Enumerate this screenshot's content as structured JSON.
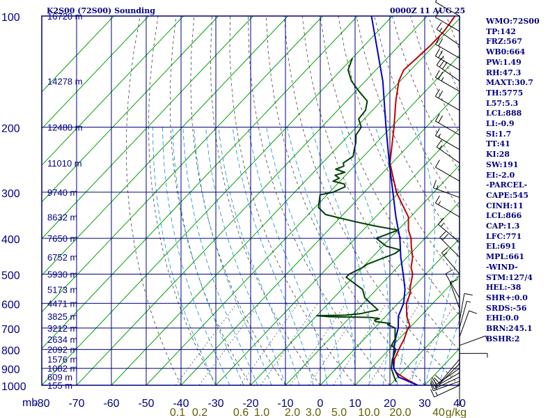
{
  "header": {
    "station": "K2S00 (72S00) Sounding",
    "time": "0000Z 11 AUG 25"
  },
  "indices": [
    "WMO:72S00",
    "TP:142",
    "FRZ:567",
    "WB0:664",
    "PW:1.49",
    "RH:47.3",
    "MAXT:30.7",
    "TH:5775",
    "L57:5.3",
    "LCL:888",
    "LI:-0.9",
    "SI:1.7",
    "TT:41",
    "KI:28",
    "SW:191",
    "EI:-2.0",
    "-PARCEL-",
    "CAPE:545",
    "CINH:11",
    "LCL:866",
    "CAP:1.3",
    "LFC:771",
    "EL:691",
    "MPL:661",
    "-WIND-",
    "STM:127/4",
    "HEL:-38",
    "SHR+:0.0",
    "SRDS:-56",
    "EHI:0.0",
    "BRN:245.1",
    "BSHR:2"
  ],
  "chart_data": {
    "type": "line",
    "title": "K2S00 (72S00) Sounding",
    "subtitle": "0000Z 11 AUG 25",
    "y_axis": {
      "label": "mb",
      "scale": "log",
      "range": [
        1000,
        100
      ],
      "ticks": [
        100,
        200,
        300,
        400,
        500,
        600,
        700,
        800,
        900,
        1000
      ]
    },
    "height_labels": [
      {
        "p": 100,
        "text": "16720 m"
      },
      {
        "p": 150,
        "text": "14278 m"
      },
      {
        "p": 200,
        "text": "12480 m"
      },
      {
        "p": 250,
        "text": "11010 m"
      },
      {
        "p": 300,
        "text": "9740 m"
      },
      {
        "p": 350,
        "text": "8632 m"
      },
      {
        "p": 400,
        "text": "7650 m"
      },
      {
        "p": 450,
        "text": "6752 m"
      },
      {
        "p": 500,
        "text": "5930 m"
      },
      {
        "p": 550,
        "text": "5173 m"
      },
      {
        "p": 600,
        "text": "4471 m"
      },
      {
        "p": 650,
        "text": "3825 m"
      },
      {
        "p": 700,
        "text": "3212 m"
      },
      {
        "p": 750,
        "text": "2634 m"
      },
      {
        "p": 800,
        "text": "2092 m"
      },
      {
        "p": 850,
        "text": "1576 m"
      },
      {
        "p": 900,
        "text": "1082 m"
      },
      {
        "p": 950,
        "text": "609 m"
      },
      {
        "p": 1000,
        "text": "155 m"
      }
    ],
    "x_axis": {
      "ticks": [
        "-80",
        "-70",
        "-60",
        "-50",
        "-40",
        "-30",
        "-20",
        "-10",
        "0",
        "10",
        "20",
        "30",
        "40"
      ],
      "range": [
        -80,
        40
      ]
    },
    "mixing_ratio_labels": [
      "0.1",
      "0.2",
      "0.6",
      "1.0",
      "2.0",
      "3.0",
      "5.0",
      "10.0",
      "20.0",
      "40",
      "g/kg"
    ],
    "series": [
      {
        "color": "#c00000",
        "points": [
          [
            1000,
            28
          ],
          [
            970,
            24
          ],
          [
            950,
            21.5
          ],
          [
            925,
            18.5
          ],
          [
            900,
            16.5
          ],
          [
            850,
            14.2
          ],
          [
            800,
            12.8
          ],
          [
            750,
            11.5
          ],
          [
            700,
            9.6
          ],
          [
            690,
            9.5
          ],
          [
            650,
            6
          ],
          [
            600,
            2.4
          ],
          [
            560,
            0.6
          ],
          [
            550,
            -0.4
          ],
          [
            520,
            -2.4
          ],
          [
            500,
            -3.8
          ],
          [
            480,
            -6
          ],
          [
            450,
            -8.4
          ],
          [
            420,
            -11.8
          ],
          [
            400,
            -14
          ],
          [
            380,
            -17
          ],
          [
            350,
            -20.6
          ],
          [
            300,
            -30.8
          ],
          [
            250,
            -40.6
          ],
          [
            200,
            -49.2
          ],
          [
            170,
            -55.8
          ],
          [
            150,
            -60.4
          ],
          [
            140,
            -62
          ],
          [
            130,
            -61.5
          ],
          [
            120,
            -61
          ],
          [
            110,
            -61
          ],
          [
            100,
            -62
          ]
        ]
      },
      {
        "color": "#0000c0",
        "points": [
          [
            1000,
            28
          ],
          [
            950,
            20.2
          ],
          [
            900,
            16.5
          ],
          [
            850,
            13.8
          ],
          [
            800,
            11.4
          ],
          [
            750,
            9
          ],
          [
            700,
            6.8
          ],
          [
            650,
            3.6
          ],
          [
            600,
            1.6
          ],
          [
            550,
            -1.8
          ],
          [
            500,
            -6.5
          ],
          [
            450,
            -11.8
          ],
          [
            400,
            -17.2
          ],
          [
            350,
            -24.2
          ],
          [
            300,
            -31.8
          ],
          [
            250,
            -40.8
          ],
          [
            200,
            -51.5
          ],
          [
            150,
            -65
          ],
          [
            100,
            -86
          ]
        ]
      },
      {
        "color": "#004000",
        "points": [
          [
            980,
            21
          ],
          [
            950,
            19
          ],
          [
            900,
            15.8
          ],
          [
            850,
            13.6
          ],
          [
            800,
            12
          ],
          [
            780,
            9.6
          ],
          [
            750,
            8.9
          ],
          [
            700,
            5.9
          ],
          [
            685,
            2.8
          ],
          [
            680,
            3.2
          ],
          [
            672,
            -1.5
          ],
          [
            666,
            -2.2
          ],
          [
            660,
            -1.2
          ],
          [
            655,
            -4
          ],
          [
            652,
            -16
          ],
          [
            648,
            -20
          ],
          [
            646,
            -12
          ],
          [
            640,
            -8
          ],
          [
            625,
            -4
          ],
          [
            580,
            -11
          ],
          [
            550,
            -14
          ],
          [
            510,
            -22
          ],
          [
            500,
            -22
          ],
          [
            480,
            -20
          ],
          [
            470,
            -19.5
          ],
          [
            440,
            -14.5
          ],
          [
            430,
            -14
          ],
          [
            420,
            -19
          ],
          [
            400,
            -24
          ],
          [
            390,
            -22
          ],
          [
            380,
            -20
          ],
          [
            370,
            -28
          ],
          [
            360,
            -35
          ],
          [
            345,
            -45
          ],
          [
            330,
            -49
          ],
          [
            305,
            -52
          ],
          [
            300,
            -49
          ],
          [
            290,
            -47
          ],
          [
            285,
            -48
          ],
          [
            280,
            -52
          ],
          [
            275,
            -51
          ],
          [
            270,
            -53
          ],
          [
            265,
            -51
          ],
          [
            260,
            -54.5
          ],
          [
            255,
            -53
          ],
          [
            250,
            -54
          ],
          [
            240,
            -53
          ],
          [
            230,
            -54.5
          ],
          [
            220,
            -56
          ],
          [
            210,
            -58
          ],
          [
            200,
            -58.6
          ],
          [
            190,
            -61.6
          ],
          [
            180,
            -62
          ],
          [
            170,
            -64
          ],
          [
            160,
            -69
          ],
          [
            150,
            -74
          ],
          [
            140,
            -78
          ],
          [
            130,
            -80
          ]
        ]
      }
    ],
    "wind_barbs": [
      {
        "p": 1000,
        "dir": 245,
        "spd": 15
      },
      {
        "p": 975,
        "dir": 250,
        "spd": 15
      },
      {
        "p": 950,
        "dir": 245,
        "spd": 20
      },
      {
        "p": 925,
        "dir": 240,
        "spd": 10
      },
      {
        "p": 900,
        "dir": 235,
        "spd": 10
      },
      {
        "p": 875,
        "dir": 225,
        "spd": 10
      },
      {
        "p": 850,
        "dir": 220,
        "spd": 10
      },
      {
        "p": 820,
        "dir": 90,
        "spd": 5
      },
      {
        "p": 780,
        "dir": 70,
        "spd": 5
      },
      {
        "p": 740,
        "dir": 20,
        "spd": 10
      },
      {
        "p": 700,
        "dir": 15,
        "spd": 5
      },
      {
        "p": 670,
        "dir": 10,
        "spd": 10
      },
      {
        "p": 620,
        "dir": 340,
        "spd": 10
      },
      {
        "p": 580,
        "dir": 330,
        "spd": 10
      },
      {
        "p": 500,
        "dir": 320,
        "spd": 15
      },
      {
        "p": 450,
        "dir": 315,
        "spd": 20
      },
      {
        "p": 410,
        "dir": 310,
        "spd": 15
      },
      {
        "p": 350,
        "dir": 300,
        "spd": 15
      },
      {
        "p": 310,
        "dir": 290,
        "spd": 15
      },
      {
        "p": 280,
        "dir": 300,
        "spd": 10
      },
      {
        "p": 250,
        "dir": 305,
        "spd": 15
      },
      {
        "p": 230,
        "dir": 300,
        "spd": 15
      },
      {
        "p": 210,
        "dir": 300,
        "spd": 20
      },
      {
        "p": 180,
        "dir": 300,
        "spd": 20
      },
      {
        "p": 160,
        "dir": 300,
        "spd": 25
      },
      {
        "p": 150,
        "dir": 305,
        "spd": 30
      },
      {
        "p": 140,
        "dir": 300,
        "spd": 25
      },
      {
        "p": 130,
        "dir": 300,
        "spd": 20
      },
      {
        "p": 120,
        "dir": 305,
        "spd": 15
      },
      {
        "p": 110,
        "dir": 300,
        "spd": 10
      },
      {
        "p": 100,
        "dir": 300,
        "spd": 10
      }
    ],
    "grid": true,
    "colors": {
      "frame": "#000080",
      "isotherm": "#00a000",
      "dry_adiabat": "#404040",
      "moist_adiabat": "#0090d0",
      "mixing_ratio_label": "#606000"
    }
  }
}
